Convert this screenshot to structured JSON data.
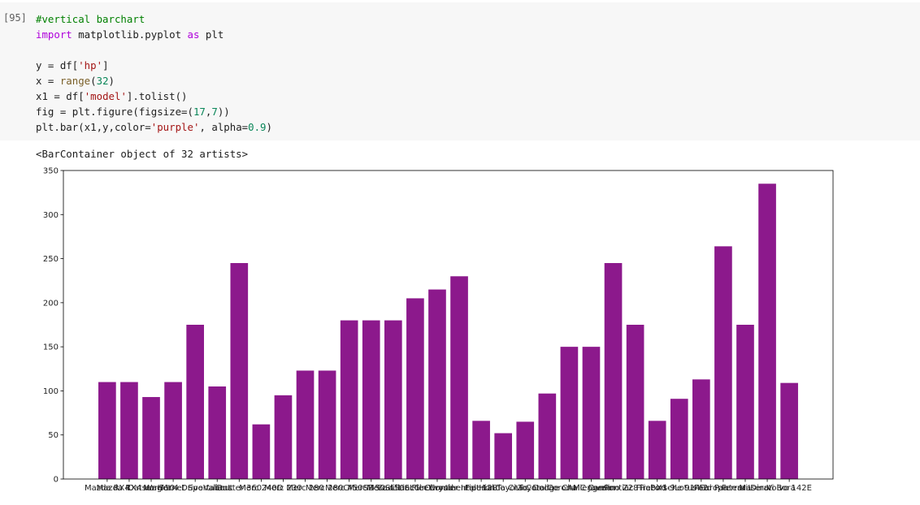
{
  "cell": {
    "prompt": "[95]",
    "code_lines": [
      [
        {
          "t": "#vertical barchart",
          "c": "cm"
        }
      ],
      [
        {
          "t": "import",
          "c": "kw"
        },
        {
          "t": " matplotlib.pyplot ",
          "c": ""
        },
        {
          "t": "as",
          "c": "kw"
        },
        {
          "t": " plt",
          "c": ""
        }
      ],
      [
        {
          "t": "",
          "c": ""
        }
      ],
      [
        {
          "t": "y = df[",
          "c": ""
        },
        {
          "t": "'hp'",
          "c": "str"
        },
        {
          "t": "]",
          "c": ""
        }
      ],
      [
        {
          "t": "x = ",
          "c": ""
        },
        {
          "t": "range",
          "c": "fn"
        },
        {
          "t": "(",
          "c": ""
        },
        {
          "t": "32",
          "c": "num"
        },
        {
          "t": ")",
          "c": ""
        }
      ],
      [
        {
          "t": "x1 = df[",
          "c": ""
        },
        {
          "t": "'model'",
          "c": "str"
        },
        {
          "t": "].tolist()",
          "c": ""
        }
      ],
      [
        {
          "t": "fig = plt.figure(figsize=(",
          "c": ""
        },
        {
          "t": "17",
          "c": "num"
        },
        {
          "t": ",",
          "c": ""
        },
        {
          "t": "7",
          "c": "num"
        },
        {
          "t": "))",
          "c": ""
        }
      ],
      [
        {
          "t": "plt.bar(x1,y,color=",
          "c": ""
        },
        {
          "t": "'purple'",
          "c": "str"
        },
        {
          "t": ", alpha=",
          "c": ""
        },
        {
          "t": "0.9",
          "c": "num"
        },
        {
          "t": ")",
          "c": ""
        }
      ]
    ],
    "output_text": "<BarContainer object of 32 artists>"
  },
  "colors": {
    "bar": "#800080",
    "cell_bg": "#f7f7f7"
  },
  "chart_data": {
    "type": "bar",
    "title": "",
    "xlabel": "",
    "ylabel": "",
    "ylim": [
      0,
      350
    ],
    "yticks": [
      0,
      50,
      100,
      150,
      200,
      250,
      300,
      350
    ],
    "categories": [
      "Mazda RX4",
      "Mazda RX4 Wag",
      "Datsun 710",
      "Hornet 4 Drive",
      "Hornet Sportabout",
      "Valiant",
      "Duster 360",
      "Merc 240D",
      "Merc 230",
      "Merc 280",
      "Merc 280C",
      "Merc 450SE",
      "Merc 450SL",
      "Merc 450SLC",
      "Cadillac Fleetwood",
      "Lincoln Continental",
      "Chrysler Imperial",
      "Fiat 128",
      "Honda Civic",
      "Toyota Corolla",
      "Toyota Corona",
      "Dodge Challenger",
      "AMC Javelin",
      "Camaro Z28",
      "Pontiac Firebird",
      "Fiat X1-9",
      "Porsche 914-2",
      "Lotus Europa",
      "Ford Pantera L",
      "Ferrari Dino",
      "Maserati Bora",
      "Volvo 142E"
    ],
    "values": [
      110,
      110,
      93,
      110,
      175,
      105,
      245,
      62,
      95,
      123,
      123,
      180,
      180,
      180,
      205,
      215,
      230,
      66,
      52,
      65,
      97,
      150,
      150,
      245,
      175,
      66,
      91,
      113,
      264,
      175,
      335,
      109
    ],
    "alpha": 0.9
  }
}
